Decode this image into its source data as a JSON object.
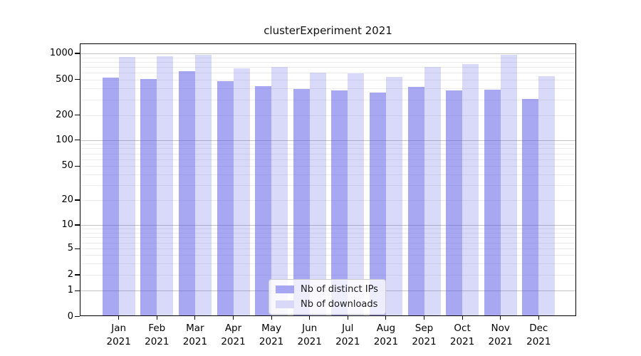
{
  "chart_data": {
    "type": "bar",
    "title": "clusterExperiment 2021",
    "categories": [
      "Jan 2021",
      "Feb 2021",
      "Mar 2021",
      "Apr 2021",
      "May 2021",
      "Jun 2021",
      "Jul 2021",
      "Aug 2021",
      "Sep 2021",
      "Oct 2021",
      "Nov 2021",
      "Dec 2021"
    ],
    "x_months": [
      "Jan",
      "Feb",
      "Mar",
      "Apr",
      "May",
      "Jun",
      "Jul",
      "Aug",
      "Sep",
      "Oct",
      "Nov",
      "Dec"
    ],
    "x_year": "2021",
    "series": [
      {
        "name": "Nb of distinct IPs",
        "color": "#a6a6f2",
        "fill": "rgba(80,80,230,0.5)",
        "values": [
          525,
          500,
          615,
          479,
          415,
          385,
          376,
          353,
          411,
          376,
          378,
          299
        ]
      },
      {
        "name": "Nb of downloads",
        "color": "#d8d8f8",
        "fill": "rgba(80,80,230,0.22)",
        "values": [
          900,
          922,
          958,
          672,
          694,
          595,
          589,
          533,
          690,
          753,
          950,
          540
        ]
      }
    ],
    "yscale": "log with 0 baseline",
    "ylim": [
      0,
      1300
    ],
    "ytick_values": [
      1000,
      500,
      200,
      100,
      50,
      20,
      10,
      5,
      2,
      1,
      0
    ],
    "ytick_labels": [
      "1000",
      "500",
      "200",
      "100",
      "50",
      "20",
      "10",
      "5",
      "2",
      "1",
      "0"
    ],
    "grid": {
      "major": [
        1,
        10,
        100,
        1000
      ],
      "minor": [
        2,
        3,
        4,
        5,
        6,
        7,
        8,
        9,
        20,
        30,
        40,
        50,
        60,
        70,
        80,
        90,
        200,
        300,
        400,
        500,
        600,
        700,
        800,
        900
      ]
    },
    "legend_position": "lower center"
  }
}
